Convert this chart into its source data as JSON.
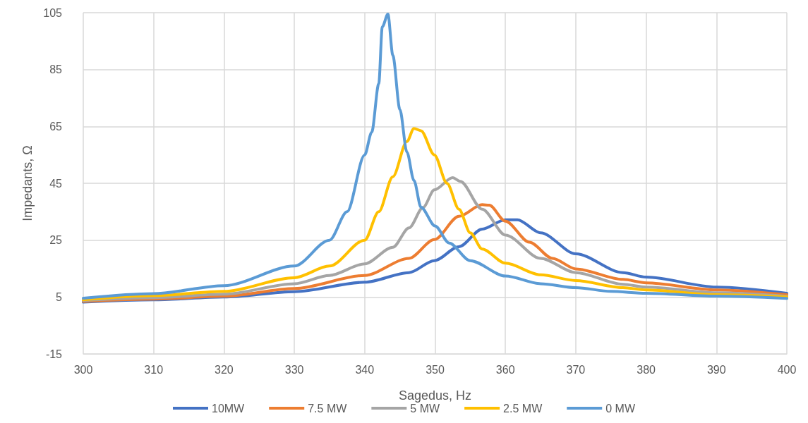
{
  "chart_data": {
    "type": "line",
    "xlabel": "Sagedus, Hz",
    "ylabel": "Impedants, Ω",
    "xlim": [
      300,
      400
    ],
    "xticks": [
      300,
      310,
      320,
      330,
      340,
      350,
      360,
      370,
      380,
      390,
      400
    ],
    "ylim": [
      -15,
      105
    ],
    "yticks": [
      -15,
      5,
      25,
      45,
      65,
      85,
      105
    ],
    "grid": true,
    "legend": "bottom",
    "marker": "none",
    "line_style": "solid",
    "series": [
      {
        "name": "10MW",
        "color": "#4472c4",
        "x": [
          300,
          310,
          320,
          330,
          340,
          346.3,
          349.9,
          353.4,
          356.7,
          360,
          361.7,
          365,
          370,
          376.7,
          380,
          390,
          400
        ],
        "values": [
          3.2,
          4,
          5,
          6.9,
          10.2,
          13.6,
          17.8,
          22.7,
          28.9,
          32.2,
          32.2,
          27.6,
          20.2,
          13.6,
          12,
          8.5,
          6.3
        ]
      },
      {
        "name": "7.5 MW",
        "color": "#ed7d31",
        "x": [
          300,
          310,
          320,
          330,
          340,
          346.3,
          349.9,
          353.4,
          356.7,
          357.7,
          360,
          363.4,
          366.7,
          370,
          376.7,
          380,
          390,
          400
        ],
        "values": [
          3.5,
          4.3,
          5.3,
          8,
          12.6,
          18.6,
          25.2,
          33.4,
          37.5,
          37.3,
          31.7,
          24.3,
          18.6,
          14.9,
          11.2,
          10,
          7.5,
          5.8
        ]
      },
      {
        "name": "5 MW",
        "color": "#a5a5a5",
        "x": [
          300,
          310,
          320,
          330,
          335,
          340,
          344,
          346.3,
          348.3,
          349.9,
          352.5,
          353.6,
          356.7,
          360,
          365,
          370,
          376.7,
          380,
          390,
          400
        ],
        "values": [
          3.8,
          4.8,
          6,
          9.7,
          12.6,
          16.7,
          22.5,
          29.3,
          36.5,
          42.7,
          47,
          45.7,
          35.9,
          26.8,
          18.6,
          13.6,
          9.5,
          8.5,
          6.5,
          5.3
        ]
      },
      {
        "name": "2.5 MW",
        "color": "#ffc000",
        "x": [
          300,
          310,
          320,
          330,
          335,
          340,
          342,
          344,
          346,
          347,
          348,
          349.9,
          351.7,
          353.4,
          355,
          356.7,
          360,
          365,
          370,
          376.7,
          380,
          390,
          400
        ],
        "values": [
          4,
          5.5,
          7,
          11.8,
          15.9,
          25,
          35,
          47.3,
          59.7,
          64.3,
          63.5,
          55,
          45,
          35.9,
          27.6,
          21.9,
          16.9,
          12.8,
          10.8,
          8.3,
          7.5,
          5.8,
          5
        ]
      },
      {
        "name": "0 MW",
        "color": "#5b9bd5",
        "x": [
          300,
          310,
          320,
          330,
          335,
          337.5,
          340,
          341,
          342,
          342.5,
          343.3,
          344,
          345,
          346,
          347,
          348,
          350,
          352,
          355,
          360,
          365,
          370,
          375,
          380,
          390,
          400
        ],
        "values": [
          4.6,
          6.2,
          9,
          15.9,
          25,
          35,
          55,
          63,
          80,
          100,
          104.5,
          90,
          71,
          56,
          46,
          36.6,
          30,
          24,
          17.8,
          12.4,
          9.7,
          8.3,
          7,
          6.3,
          5.3,
          4.5
        ]
      }
    ]
  }
}
